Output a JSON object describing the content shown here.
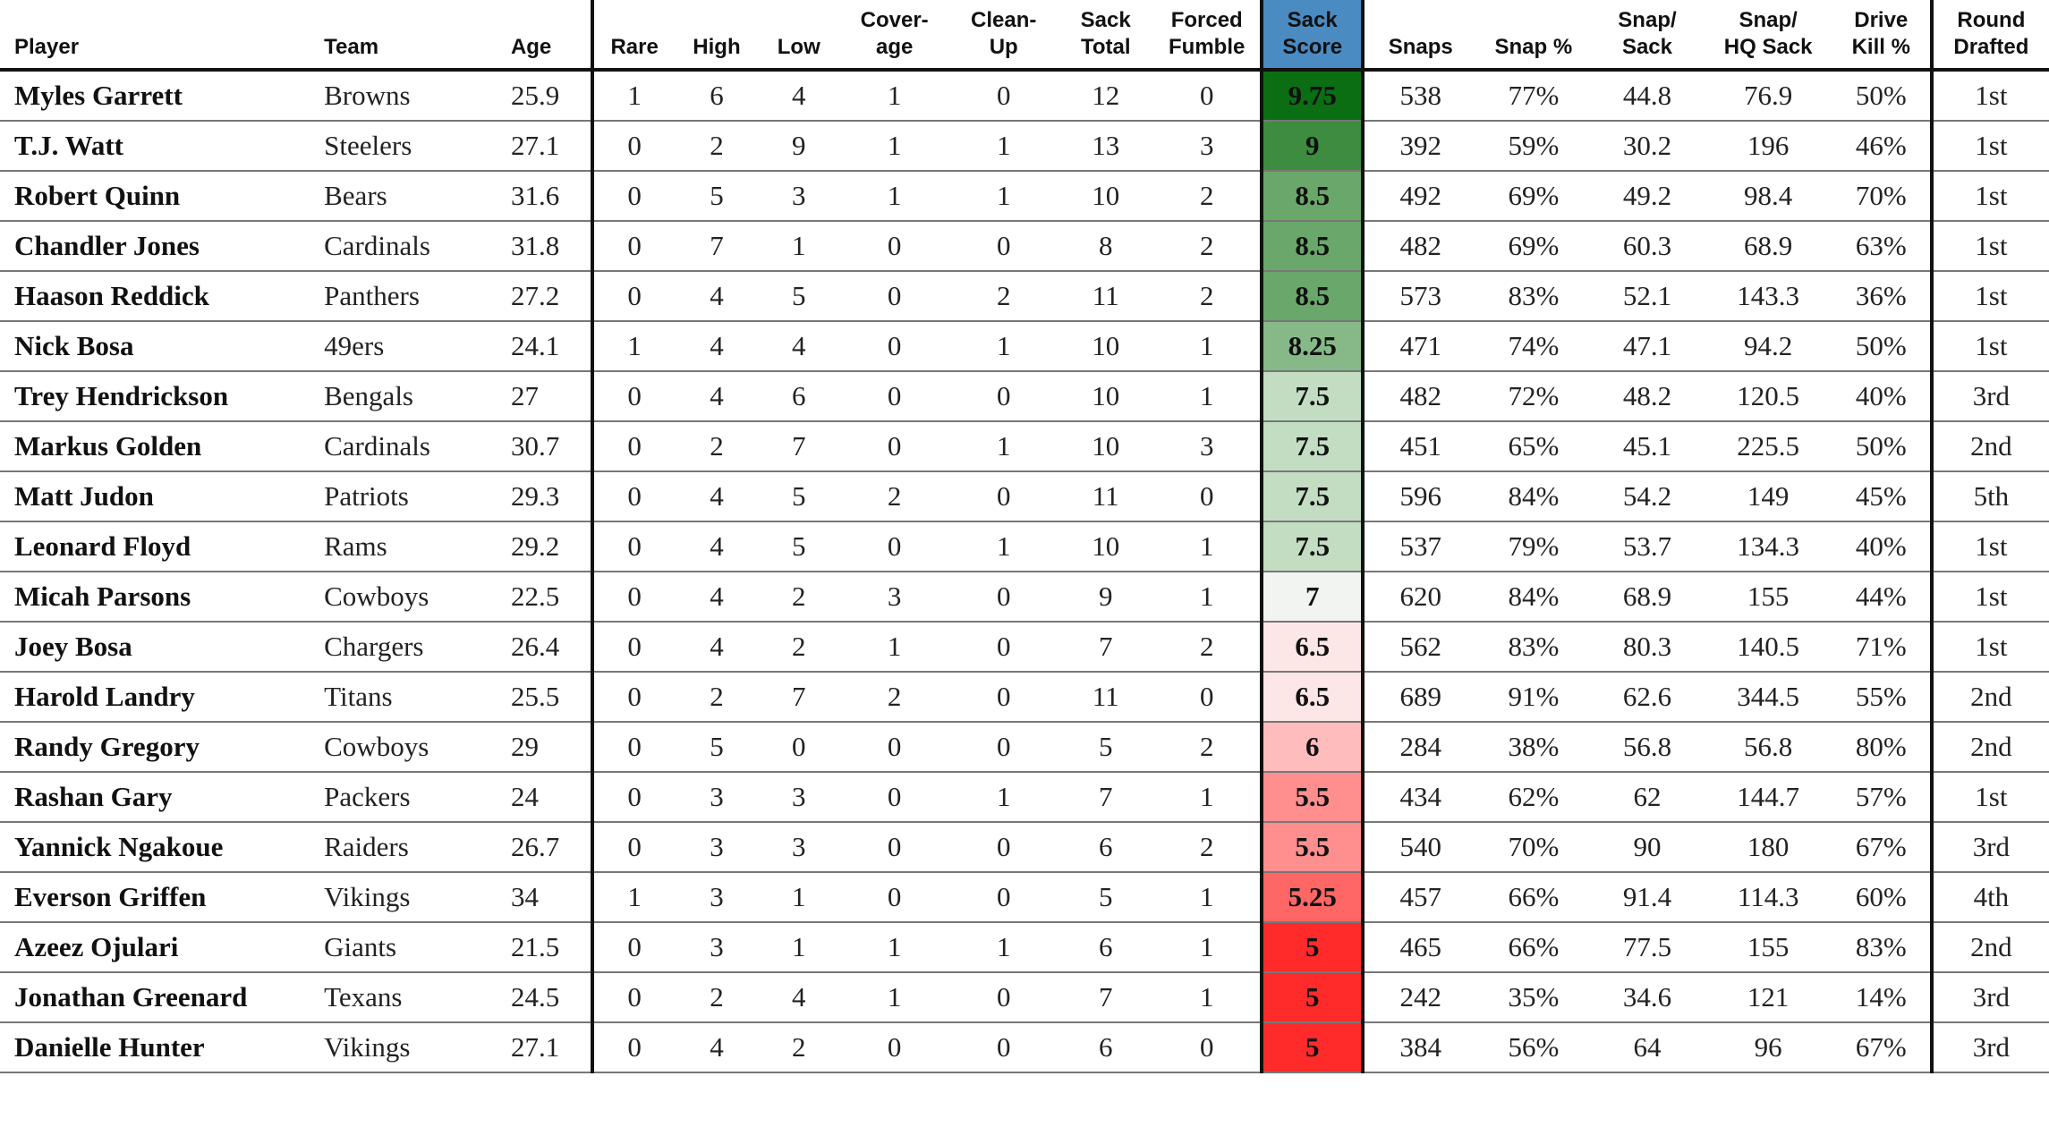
{
  "headers": {
    "player": "Player",
    "team": "Team",
    "age": "Age",
    "rare": "Rare",
    "high": "High",
    "low": "Low",
    "coverage_1": "Cover-",
    "coverage_2": "age",
    "cleanup_1": "Clean-",
    "cleanup_2": "Up",
    "sack_total_1": "Sack",
    "sack_total_2": "Total",
    "forced_fumble_1": "Forced",
    "forced_fumble_2": "Fumble",
    "sack_score_1": "Sack",
    "sack_score_2": "Score",
    "snaps": "Snaps",
    "snap_pct": "Snap %",
    "snap_sack_1": "Snap/",
    "snap_sack_2": "Sack",
    "snap_hq_1": "Snap/",
    "snap_hq_2": "HQ Sack",
    "drive_kill_1": "Drive",
    "drive_kill_2": "Kill %",
    "round_1": "Round",
    "round_2": "Drafted"
  },
  "score_colors": {
    "9.75": "#0c6e12",
    "9": "#3d8c3f",
    "8.5": "#69a86a",
    "8.25": "#86b987",
    "7.5": "#c3ddc3",
    "7": "#f2f4f2",
    "6.5": "#fde6e6",
    "6": "#ffbcbc",
    "5.5": "#ff8e8e",
    "5.25": "#ff6666",
    "5": "#ff2a2a"
  },
  "rows": [
    {
      "player": "Myles Garrett",
      "team": "Browns",
      "age": "25.9",
      "rare": "1",
      "high": "6",
      "low": "4",
      "coverage": "1",
      "cleanup": "0",
      "sack_total": "12",
      "forced_fumble": "0",
      "sack_score": "9.75",
      "snaps": "538",
      "snap_pct": "77%",
      "snap_sack": "44.8",
      "snap_hq": "76.9",
      "drive_kill": "50%",
      "round": "1st"
    },
    {
      "player": "T.J. Watt",
      "team": "Steelers",
      "age": "27.1",
      "rare": "0",
      "high": "2",
      "low": "9",
      "coverage": "1",
      "cleanup": "1",
      "sack_total": "13",
      "forced_fumble": "3",
      "sack_score": "9",
      "snaps": "392",
      "snap_pct": "59%",
      "snap_sack": "30.2",
      "snap_hq": "196",
      "drive_kill": "46%",
      "round": "1st"
    },
    {
      "player": "Robert Quinn",
      "team": "Bears",
      "age": "31.6",
      "rare": "0",
      "high": "5",
      "low": "3",
      "coverage": "1",
      "cleanup": "1",
      "sack_total": "10",
      "forced_fumble": "2",
      "sack_score": "8.5",
      "snaps": "492",
      "snap_pct": "69%",
      "snap_sack": "49.2",
      "snap_hq": "98.4",
      "drive_kill": "70%",
      "round": "1st"
    },
    {
      "player": "Chandler Jones",
      "team": "Cardinals",
      "age": "31.8",
      "rare": "0",
      "high": "7",
      "low": "1",
      "coverage": "0",
      "cleanup": "0",
      "sack_total": "8",
      "forced_fumble": "2",
      "sack_score": "8.5",
      "snaps": "482",
      "snap_pct": "69%",
      "snap_sack": "60.3",
      "snap_hq": "68.9",
      "drive_kill": "63%",
      "round": "1st"
    },
    {
      "player": "Haason Reddick",
      "team": "Panthers",
      "age": "27.2",
      "rare": "0",
      "high": "4",
      "low": "5",
      "coverage": "0",
      "cleanup": "2",
      "sack_total": "11",
      "forced_fumble": "2",
      "sack_score": "8.5",
      "snaps": "573",
      "snap_pct": "83%",
      "snap_sack": "52.1",
      "snap_hq": "143.3",
      "drive_kill": "36%",
      "round": "1st"
    },
    {
      "player": "Nick Bosa",
      "team": "49ers",
      "age": "24.1",
      "rare": "1",
      "high": "4",
      "low": "4",
      "coverage": "0",
      "cleanup": "1",
      "sack_total": "10",
      "forced_fumble": "1",
      "sack_score": "8.25",
      "snaps": "471",
      "snap_pct": "74%",
      "snap_sack": "47.1",
      "snap_hq": "94.2",
      "drive_kill": "50%",
      "round": "1st"
    },
    {
      "player": "Trey Hendrickson",
      "team": "Bengals",
      "age": "27",
      "rare": "0",
      "high": "4",
      "low": "6",
      "coverage": "0",
      "cleanup": "0",
      "sack_total": "10",
      "forced_fumble": "1",
      "sack_score": "7.5",
      "snaps": "482",
      "snap_pct": "72%",
      "snap_sack": "48.2",
      "snap_hq": "120.5",
      "drive_kill": "40%",
      "round": "3rd"
    },
    {
      "player": "Markus Golden",
      "team": "Cardinals",
      "age": "30.7",
      "rare": "0",
      "high": "2",
      "low": "7",
      "coverage": "0",
      "cleanup": "1",
      "sack_total": "10",
      "forced_fumble": "3",
      "sack_score": "7.5",
      "snaps": "451",
      "snap_pct": "65%",
      "snap_sack": "45.1",
      "snap_hq": "225.5",
      "drive_kill": "50%",
      "round": "2nd"
    },
    {
      "player": "Matt Judon",
      "team": "Patriots",
      "age": "29.3",
      "rare": "0",
      "high": "4",
      "low": "5",
      "coverage": "2",
      "cleanup": "0",
      "sack_total": "11",
      "forced_fumble": "0",
      "sack_score": "7.5",
      "snaps": "596",
      "snap_pct": "84%",
      "snap_sack": "54.2",
      "snap_hq": "149",
      "drive_kill": "45%",
      "round": "5th"
    },
    {
      "player": "Leonard Floyd",
      "team": "Rams",
      "age": "29.2",
      "rare": "0",
      "high": "4",
      "low": "5",
      "coverage": "0",
      "cleanup": "1",
      "sack_total": "10",
      "forced_fumble": "1",
      "sack_score": "7.5",
      "snaps": "537",
      "snap_pct": "79%",
      "snap_sack": "53.7",
      "snap_hq": "134.3",
      "drive_kill": "40%",
      "round": "1st"
    },
    {
      "player": "Micah Parsons",
      "team": "Cowboys",
      "age": "22.5",
      "rare": "0",
      "high": "4",
      "low": "2",
      "coverage": "3",
      "cleanup": "0",
      "sack_total": "9",
      "forced_fumble": "1",
      "sack_score": "7",
      "snaps": "620",
      "snap_pct": "84%",
      "snap_sack": "68.9",
      "snap_hq": "155",
      "drive_kill": "44%",
      "round": "1st"
    },
    {
      "player": "Joey Bosa",
      "team": "Chargers",
      "age": "26.4",
      "rare": "0",
      "high": "4",
      "low": "2",
      "coverage": "1",
      "cleanup": "0",
      "sack_total": "7",
      "forced_fumble": "2",
      "sack_score": "6.5",
      "snaps": "562",
      "snap_pct": "83%",
      "snap_sack": "80.3",
      "snap_hq": "140.5",
      "drive_kill": "71%",
      "round": "1st"
    },
    {
      "player": "Harold Landry",
      "team": "Titans",
      "age": "25.5",
      "rare": "0",
      "high": "2",
      "low": "7",
      "coverage": "2",
      "cleanup": "0",
      "sack_total": "11",
      "forced_fumble": "0",
      "sack_score": "6.5",
      "snaps": "689",
      "snap_pct": "91%",
      "snap_sack": "62.6",
      "snap_hq": "344.5",
      "drive_kill": "55%",
      "round": "2nd"
    },
    {
      "player": "Randy Gregory",
      "team": "Cowboys",
      "age": "29",
      "rare": "0",
      "high": "5",
      "low": "0",
      "coverage": "0",
      "cleanup": "0",
      "sack_total": "5",
      "forced_fumble": "2",
      "sack_score": "6",
      "snaps": "284",
      "snap_pct": "38%",
      "snap_sack": "56.8",
      "snap_hq": "56.8",
      "drive_kill": "80%",
      "round": "2nd"
    },
    {
      "player": "Rashan Gary",
      "team": "Packers",
      "age": "24",
      "rare": "0",
      "high": "3",
      "low": "3",
      "coverage": "0",
      "cleanup": "1",
      "sack_total": "7",
      "forced_fumble": "1",
      "sack_score": "5.5",
      "snaps": "434",
      "snap_pct": "62%",
      "snap_sack": "62",
      "snap_hq": "144.7",
      "drive_kill": "57%",
      "round": "1st"
    },
    {
      "player": "Yannick Ngakoue",
      "team": "Raiders",
      "age": "26.7",
      "rare": "0",
      "high": "3",
      "low": "3",
      "coverage": "0",
      "cleanup": "0",
      "sack_total": "6",
      "forced_fumble": "2",
      "sack_score": "5.5",
      "snaps": "540",
      "snap_pct": "70%",
      "snap_sack": "90",
      "snap_hq": "180",
      "drive_kill": "67%",
      "round": "3rd"
    },
    {
      "player": "Everson Griffen",
      "team": "Vikings",
      "age": "34",
      "rare": "1",
      "high": "3",
      "low": "1",
      "coverage": "0",
      "cleanup": "0",
      "sack_total": "5",
      "forced_fumble": "1",
      "sack_score": "5.25",
      "snaps": "457",
      "snap_pct": "66%",
      "snap_sack": "91.4",
      "snap_hq": "114.3",
      "drive_kill": "60%",
      "round": "4th"
    },
    {
      "player": "Azeez Ojulari",
      "team": "Giants",
      "age": "21.5",
      "rare": "0",
      "high": "3",
      "low": "1",
      "coverage": "1",
      "cleanup": "1",
      "sack_total": "6",
      "forced_fumble": "1",
      "sack_score": "5",
      "snaps": "465",
      "snap_pct": "66%",
      "snap_sack": "77.5",
      "snap_hq": "155",
      "drive_kill": "83%",
      "round": "2nd"
    },
    {
      "player": "Jonathan Greenard",
      "team": "Texans",
      "age": "24.5",
      "rare": "0",
      "high": "2",
      "low": "4",
      "coverage": "1",
      "cleanup": "0",
      "sack_total": "7",
      "forced_fumble": "1",
      "sack_score": "5",
      "snaps": "242",
      "snap_pct": "35%",
      "snap_sack": "34.6",
      "snap_hq": "121",
      "drive_kill": "14%",
      "round": "3rd"
    },
    {
      "player": "Danielle Hunter",
      "team": "Vikings",
      "age": "27.1",
      "rare": "0",
      "high": "4",
      "low": "2",
      "coverage": "0",
      "cleanup": "0",
      "sack_total": "6",
      "forced_fumble": "0",
      "sack_score": "5",
      "snaps": "384",
      "snap_pct": "56%",
      "snap_sack": "64",
      "snap_hq": "96",
      "drive_kill": "67%",
      "round": "3rd"
    }
  ]
}
